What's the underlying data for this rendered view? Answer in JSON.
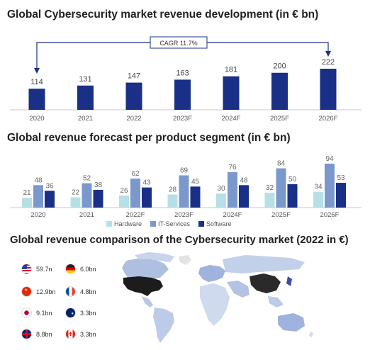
{
  "titles": {
    "chart1": "Global Cybersecurity market revenue development (in € bn)",
    "chart2": "Global revenue forecast per product segment (in € bn)",
    "map": "Global revenue comparison of the Cybersecurity market (2022 in €)"
  },
  "cagr_label": "CAGR 11.7%",
  "chart_data": [
    {
      "type": "bar",
      "title": "Global Cybersecurity market revenue development (in € bn)",
      "categories": [
        "2020",
        "2021",
        "2022",
        "2023F",
        "2024F",
        "2025F",
        "2026F"
      ],
      "values": [
        114,
        131,
        147,
        163,
        181,
        200,
        222
      ],
      "annotation": "CAGR 11.7%",
      "color": "#1a2f86"
    },
    {
      "type": "bar",
      "title": "Global revenue forecast per product segment (in € bn)",
      "categories": [
        "2020",
        "2021",
        "2022F",
        "2023F",
        "2024F",
        "2025F",
        "2026F"
      ],
      "series": [
        {
          "name": "Hardware",
          "values": [
            21,
            22,
            26,
            28,
            30,
            32,
            34
          ],
          "color": "#b7e0e6"
        },
        {
          "name": "IT-Services",
          "values": [
            48,
            52,
            62,
            69,
            76,
            84,
            94
          ],
          "color": "#7b98cc"
        },
        {
          "name": "Software",
          "values": [
            36,
            38,
            43,
            45,
            48,
            50,
            53
          ],
          "color": "#1a2f86"
        }
      ]
    }
  ],
  "legend": [
    {
      "label": "Hardware",
      "color": "#b7e0e6"
    },
    {
      "label": "IT-Services",
      "color": "#7b98cc"
    },
    {
      "label": "Software",
      "color": "#1a2f86"
    }
  ],
  "countries": [
    {
      "flag": "usa-flag-icon",
      "value": "59.7n"
    },
    {
      "flag": "germany-flag-icon",
      "value": "6.0bn"
    },
    {
      "flag": "china-flag-icon",
      "value": "12.9bn"
    },
    {
      "flag": "france-flag-icon",
      "value": "4.8bn"
    },
    {
      "flag": "japan-flag-icon",
      "value": "9.1bn"
    },
    {
      "flag": "australia-flag-icon",
      "value": "3.3bn"
    },
    {
      "flag": "uk-flag-icon",
      "value": "8.8bn"
    },
    {
      "flag": "canada-flag-icon",
      "value": "3.3bn"
    }
  ]
}
